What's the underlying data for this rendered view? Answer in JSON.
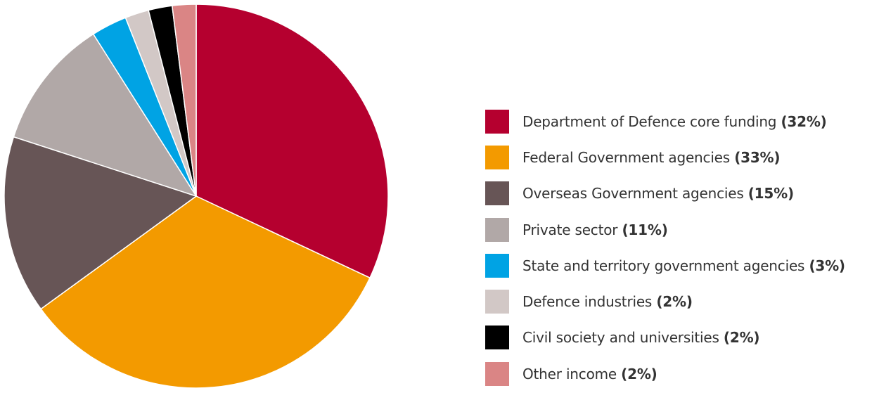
{
  "chart_data": {
    "type": "pie",
    "title": "",
    "start_angle_deg": 0,
    "direction": "clockwise",
    "slices": [
      {
        "label": "Department of Defence core funding",
        "value": 32,
        "value_label": "(32%)",
        "color": "#b5002f"
      },
      {
        "label": "Federal Government agencies",
        "value": 33,
        "value_label": "(33%)",
        "color": "#f39a00"
      },
      {
        "label": "Overseas Government agencies",
        "value": 15,
        "value_label": "(15%)",
        "color": "#675556"
      },
      {
        "label": "Private sector",
        "value": 11,
        "value_label": "(11%)",
        "color": "#b1a8a7"
      },
      {
        "label": "State and territory government agencies",
        "value": 3,
        "value_label": "(3%)",
        "color": "#00a3e4"
      },
      {
        "label": "Defence industries",
        "value": 2,
        "value_label": "(2%)",
        "color": "#d2c8c6"
      },
      {
        "label": "Civil society and universities",
        "value": 2,
        "value_label": "(2%)",
        "color": "#000000"
      },
      {
        "label": "Other income",
        "value": 2,
        "value_label": "(2%)",
        "color": "#da8585"
      }
    ],
    "legend_position": "right"
  }
}
